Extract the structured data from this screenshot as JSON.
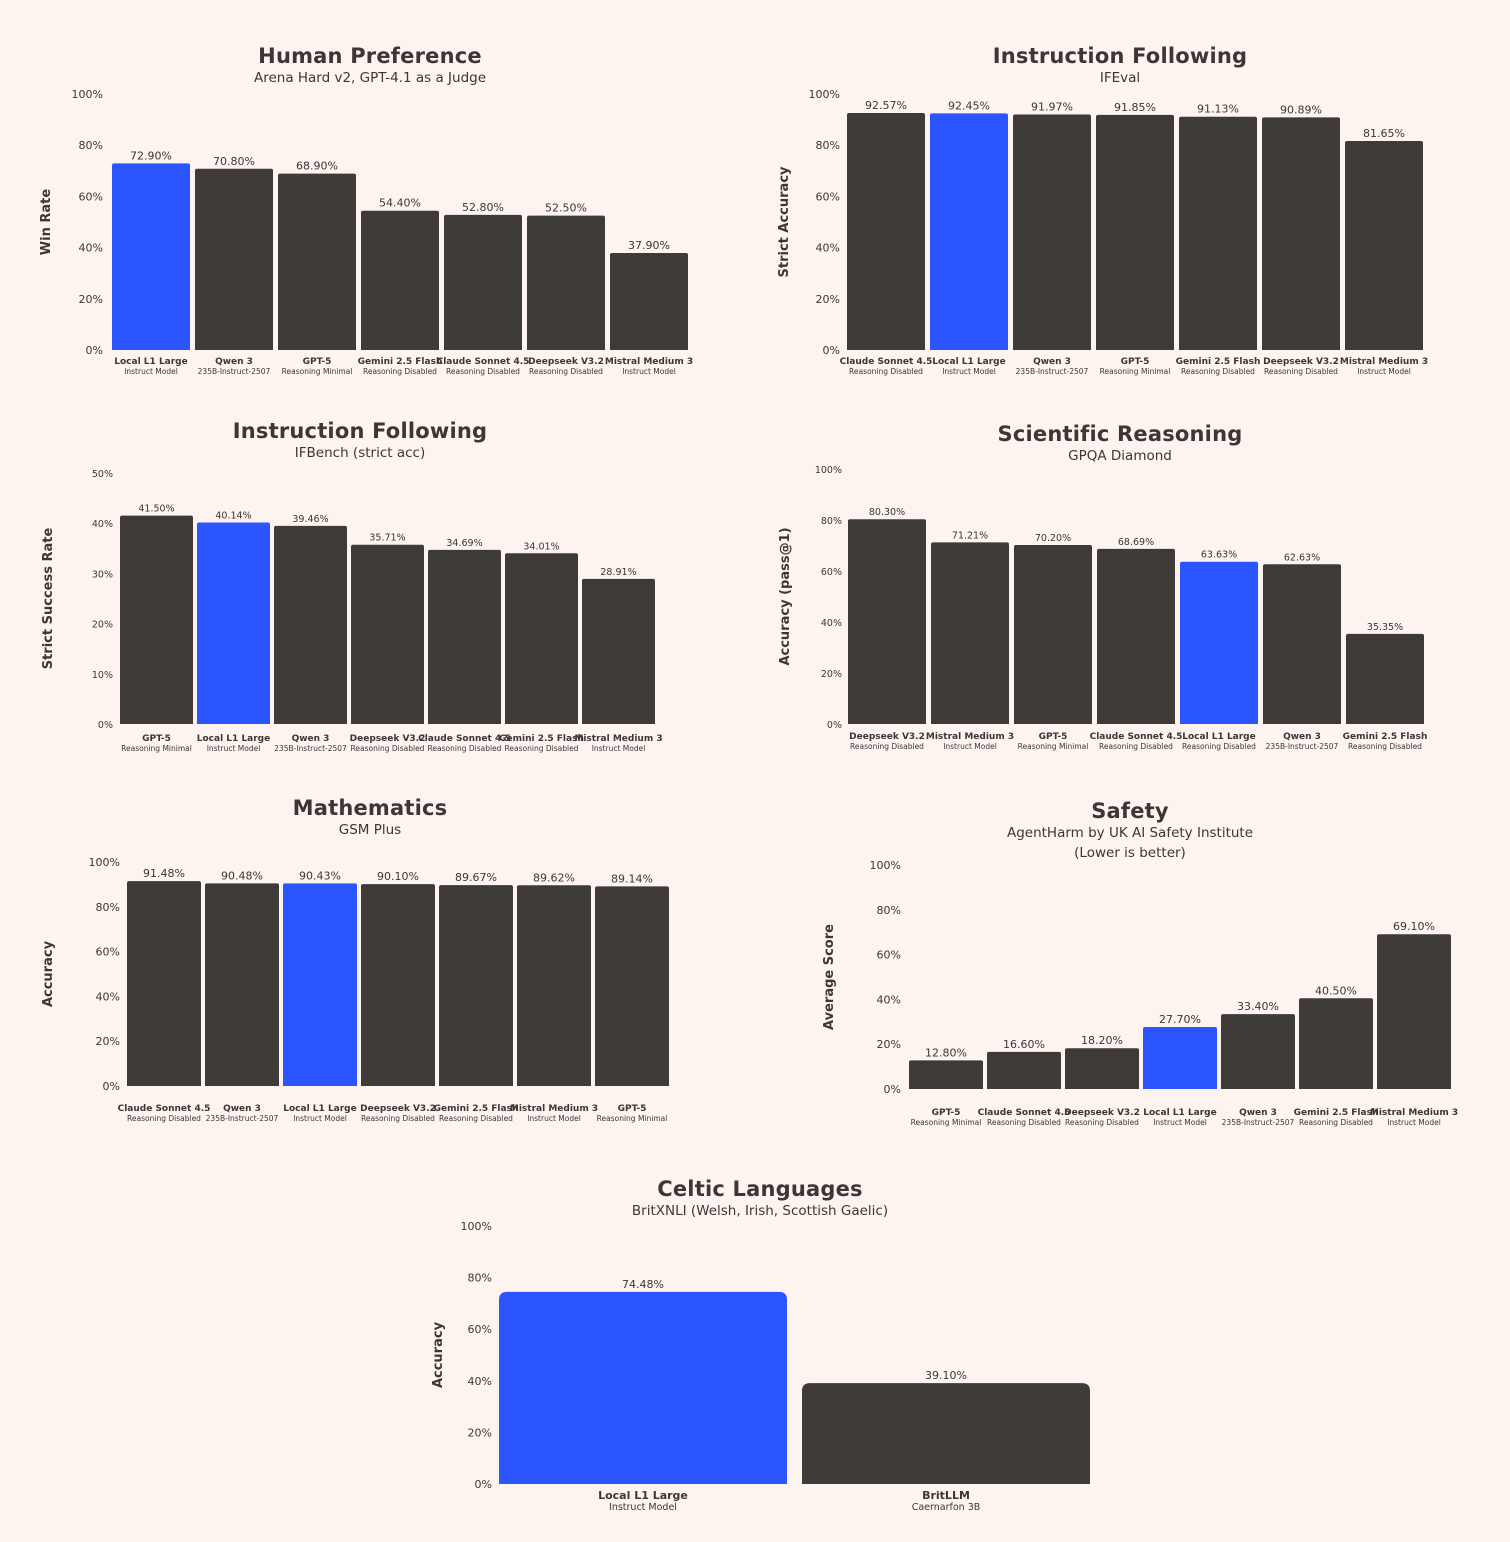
{
  "colors": {
    "bar": "#3e3a38",
    "highlight": "#2a55ff",
    "text": "#3b3735",
    "background": "#fdf3ef"
  },
  "chart_data": [
    {
      "type": "bar",
      "title": "Human Preference",
      "subtitle": "Arena Hard v2, GPT-4.1 as a Judge",
      "ylabel": "Win Rate",
      "ylim": [
        0,
        100
      ],
      "yticks": [
        "0%",
        "20%",
        "40%",
        "60%",
        "80%",
        "100%"
      ],
      "categories": [
        "Local L1 Large",
        "Qwen 3",
        "GPT-5",
        "Gemini 2.5 Flash",
        "Claude Sonnet 4.5",
        "Deepseek V3.2",
        "Mistral Medium 3"
      ],
      "category_sublabels": [
        "Instruct Model",
        "235B-Instruct-2507",
        "Reasoning Minimal",
        "Reasoning Disabled",
        "Reasoning Disabled",
        "Reasoning Disabled",
        "Instruct Model"
      ],
      "values": [
        72.9,
        70.8,
        68.9,
        54.4,
        52.8,
        52.5,
        37.9
      ],
      "value_labels": [
        "72.90%",
        "70.80%",
        "68.90%",
        "54.40%",
        "52.80%",
        "52.50%",
        "37.90%"
      ],
      "highlight_index": 0
    },
    {
      "type": "bar",
      "title": "Instruction Following",
      "subtitle": "IFEval",
      "ylabel": "Strict Accuracy",
      "ylim": [
        0,
        100
      ],
      "yticks": [
        "0%",
        "20%",
        "40%",
        "60%",
        "80%",
        "100%"
      ],
      "categories": [
        "Claude Sonnet 4.5",
        "Local L1 Large",
        "Qwen 3",
        "GPT-5",
        "Gemini 2.5 Flash",
        "Deepseek V3.2",
        "Mistral Medium 3"
      ],
      "category_sublabels": [
        "Reasoning Disabled",
        "Instruct Model",
        "235B-Instruct-2507",
        "Reasoning Minimal",
        "Reasoning Disabled",
        "Reasoning Disabled",
        "Instruct Model"
      ],
      "values": [
        92.57,
        92.45,
        91.97,
        91.85,
        91.13,
        90.89,
        81.65
      ],
      "value_labels": [
        "92.57%",
        "92.45%",
        "91.97%",
        "91.85%",
        "91.13%",
        "90.89%",
        "81.65%"
      ],
      "highlight_index": 1
    },
    {
      "type": "bar",
      "title": "Instruction Following",
      "subtitle": "IFBench (strict acc)",
      "ylabel": "Strict Success Rate",
      "ylim": [
        0,
        50
      ],
      "yticks": [
        "0%",
        "10%",
        "20%",
        "30%",
        "40%",
        "50%"
      ],
      "categories": [
        "GPT-5",
        "Local L1 Large",
        "Qwen 3",
        "Deepseek V3.2",
        "Claude Sonnet 4.5",
        "Gemini 2.5 Flash",
        "Mistral Medium 3"
      ],
      "category_sublabels": [
        "Reasoning Minimal",
        "Instruct Model",
        "235B-Instruct-2507",
        "Reasoning Disabled",
        "Reasoning Disabled",
        "Reasoning Disabled",
        "Instruct Model"
      ],
      "values": [
        41.5,
        40.14,
        39.46,
        35.71,
        34.69,
        34.01,
        28.91
      ],
      "value_labels": [
        "41.50%",
        "40.14%",
        "39.46%",
        "35.71%",
        "34.69%",
        "34.01%",
        "28.91%"
      ],
      "highlight_index": 1
    },
    {
      "type": "bar",
      "title": "Scientific Reasoning",
      "subtitle": "GPQA Diamond",
      "ylabel": "Accuracy (pass@1)",
      "ylim": [
        0,
        100
      ],
      "yticks": [
        "0%",
        "20%",
        "40%",
        "60%",
        "80%",
        "100%"
      ],
      "categories": [
        "Deepseek V3.2",
        "Mistral Medium 3",
        "GPT-5",
        "Claude Sonnet 4.5",
        "Local L1 Large",
        "Qwen 3",
        "Gemini 2.5 Flash"
      ],
      "category_sublabels": [
        "Reasoning Disabled",
        "Instruct Model",
        "Reasoning Minimal",
        "Reasoning Disabled",
        "Reasoning Disabled",
        "235B-Instruct-2507",
        "Reasoning Disabled"
      ],
      "values": [
        80.3,
        71.21,
        70.2,
        68.69,
        63.63,
        62.63,
        35.35
      ],
      "value_labels": [
        "80.30%",
        "71.21%",
        "70.20%",
        "68.69%",
        "63.63%",
        "62.63%",
        "35.35%"
      ],
      "highlight_index": 4
    },
    {
      "type": "bar",
      "title": "Mathematics",
      "subtitle": "GSM Plus",
      "ylabel": "Accuracy",
      "ylim": [
        0,
        100
      ],
      "yticks": [
        "0%",
        "20%",
        "40%",
        "60%",
        "80%",
        "100%"
      ],
      "categories": [
        "Claude Sonnet 4.5",
        "Qwen 3",
        "Local L1 Large",
        "Deepseek V3.2",
        "Gemini 2.5 Flash",
        "Mistral Medium 3",
        "GPT-5"
      ],
      "category_sublabels": [
        "Reasoning Disabled",
        "235B-Instruct-2507",
        "Instruct Model",
        "Reasoning Disabled",
        "Reasoning Disabled",
        "Instruct Model",
        "Reasoning Minimal"
      ],
      "values": [
        91.48,
        90.48,
        90.43,
        90.1,
        89.67,
        89.62,
        89.14
      ],
      "value_labels": [
        "91.48%",
        "90.48%",
        "90.43%",
        "90.10%",
        "89.67%",
        "89.62%",
        "89.14%"
      ],
      "highlight_index": 2
    },
    {
      "type": "bar",
      "title": "Safety",
      "subtitle": "AgentHarm by UK AI Safety Institute",
      "subtitle2": "(Lower is better)",
      "ylabel": "Average Score",
      "ylim": [
        0,
        100
      ],
      "yticks": [
        "0%",
        "20%",
        "40%",
        "60%",
        "80%",
        "100%"
      ],
      "categories": [
        "GPT-5",
        "Claude Sonnet 4.5",
        "Deepseek V3.2",
        "Local L1 Large",
        "Qwen 3",
        "Gemini 2.5 Flash",
        "Mistral Medium 3"
      ],
      "category_sublabels": [
        "Reasoning Minimal",
        "Reasoning Disabled",
        "Reasoning Disabled",
        "Instruct Model",
        "235B-Instruct-2507",
        "Reasoning Disabled",
        "Instruct Model"
      ],
      "values": [
        12.8,
        16.6,
        18.2,
        27.7,
        33.4,
        40.5,
        69.1
      ],
      "value_labels": [
        "12.80%",
        "16.60%",
        "18.20%",
        "27.70%",
        "33.40%",
        "40.50%",
        "69.10%"
      ],
      "highlight_index": 3
    },
    {
      "type": "bar",
      "title": "Celtic Languages",
      "subtitle": "BritXNLI (Welsh, Irish, Scottish Gaelic)",
      "ylabel": "Accuracy",
      "ylim": [
        0,
        100
      ],
      "yticks": [
        "0%",
        "20%",
        "40%",
        "60%",
        "80%",
        "100%"
      ],
      "categories": [
        "Local L1 Large",
        "BritLLM"
      ],
      "category_sublabels": [
        "Instruct Model",
        "Caernarfon 3B"
      ],
      "values": [
        74.48,
        39.1
      ],
      "value_labels": [
        "74.48%",
        "39.10%"
      ],
      "highlight_index": 0
    }
  ]
}
